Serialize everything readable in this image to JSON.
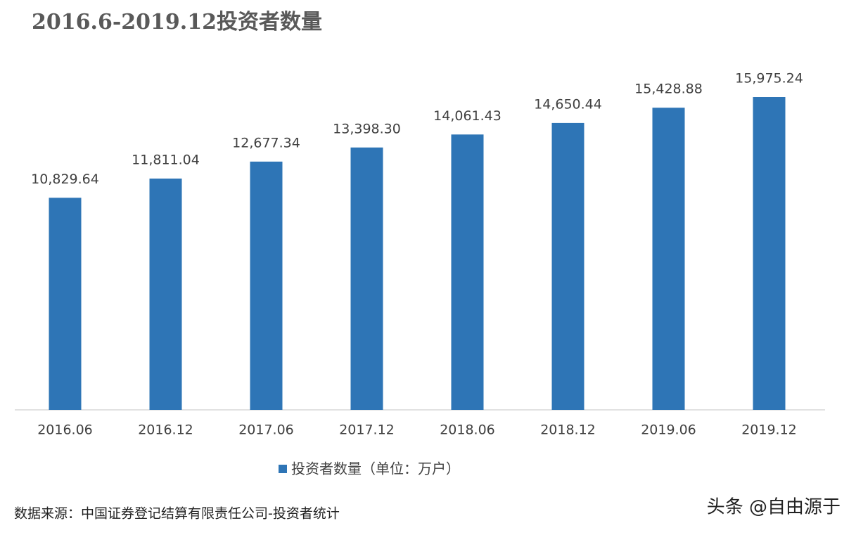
{
  "chart_data": {
    "type": "bar",
    "title": "2016.6-2019.12投资者数量",
    "categories": [
      "2016.06",
      "2016.12",
      "2017.06",
      "2017.12",
      "2018.06",
      "2018.12",
      "2019.06",
      "2019.12"
    ],
    "series": [
      {
        "name": "投资者数量（单位：万户）",
        "color": "#2e75b6",
        "values": [
          10829.64,
          11811.04,
          12677.34,
          13398.3,
          14061.43,
          14650.44,
          15428.88,
          15975.24
        ],
        "value_labels": [
          "10,829.64",
          "11,811.04",
          "12,677.34",
          "13,398.30",
          "14,061.43",
          "14,650.44",
          "15,428.88",
          "15,975.24"
        ]
      }
    ],
    "legend": "bottom",
    "source": "数据来源：中国证券登记结算有限责任公司-投资者统计"
  },
  "watermark": "头条 @自由源于"
}
